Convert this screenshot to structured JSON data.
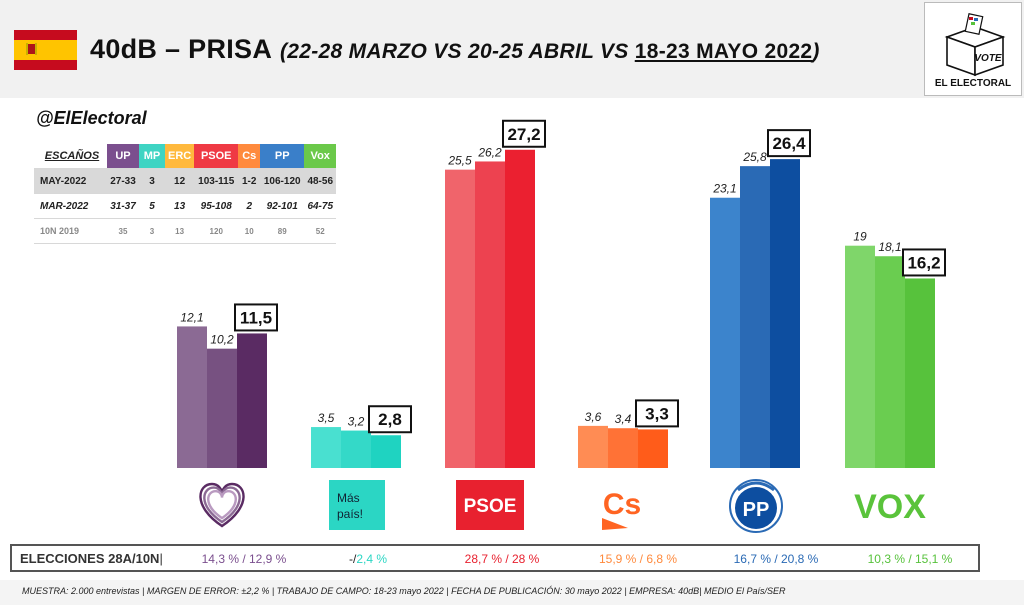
{
  "header": {
    "title_main": "40dB – PRISA",
    "title_paren_open": "(",
    "title_dates_a": "22-28 MARZO VS 20-25 ABRIL VS ",
    "title_dates_b": "18-23 MAYO 2022",
    "title_paren_close": ")",
    "flag": {
      "country": "Spain",
      "colors": [
        "#c60b1e",
        "#ffc400"
      ]
    },
    "logo": {
      "icon": "ballot-box-icon",
      "ballot_text": "VOTE",
      "text": "EL ELECTORAL"
    }
  },
  "handle": "@ElElectoral",
  "seats_table": {
    "corner_label": "ESCAÑOS",
    "parties": [
      {
        "label": "UP",
        "color": "#7b4f8e"
      },
      {
        "label": "MP",
        "color": "#3ed4c3"
      },
      {
        "label": "ERC",
        "color": "#ffb93d"
      },
      {
        "label": "PSOE",
        "color": "#ef3a44"
      },
      {
        "label": "Cs",
        "color": "#ff8a3d"
      },
      {
        "label": "PP",
        "color": "#3a7fc9"
      },
      {
        "label": "Vox",
        "color": "#6bc94a"
      }
    ],
    "rows": [
      {
        "label": "MAY-2022",
        "values": [
          "27-33",
          "3",
          "12",
          "103-115",
          "1-2",
          "106-120",
          "48-56"
        ]
      },
      {
        "label": "MAR-2022",
        "values": [
          "31-37",
          "5",
          "13",
          "95-108",
          "2",
          "92-101",
          "64-75"
        ]
      },
      {
        "label": "10N 2019",
        "values": [
          "35",
          "3",
          "13",
          "120",
          "10",
          "89",
          "52"
        ]
      }
    ]
  },
  "chart_data": {
    "type": "bar",
    "title": "",
    "xlabel": "",
    "ylabel": "",
    "ylim": [
      0,
      30
    ],
    "grid": false,
    "legend": "none",
    "categories": [
      "UP",
      "Más País",
      "PSOE",
      "Cs",
      "PP",
      "VOX"
    ],
    "periods": [
      "22-28 marzo",
      "20-25 abril",
      "18-23 mayo 2022"
    ],
    "groups": [
      {
        "name": "UP",
        "values": [
          12.1,
          10.2,
          11.5
        ],
        "labels": [
          "12,1",
          "10,2",
          "11,5"
        ],
        "colors": [
          "#8b6a94",
          "#775181",
          "#5a2b63"
        ]
      },
      {
        "name": "Más País",
        "values": [
          3.5,
          3.2,
          2.8
        ],
        "labels": [
          "3,5",
          "3,2",
          "2,8"
        ],
        "colors": [
          "#49e0d0",
          "#34d9c8",
          "#1fd3c1"
        ]
      },
      {
        "name": "PSOE",
        "values": [
          25.5,
          26.2,
          27.2
        ],
        "labels": [
          "25,5",
          "26,2",
          "27,2"
        ],
        "colors": [
          "#f0646b",
          "#ed4250",
          "#eb2030"
        ]
      },
      {
        "name": "Cs",
        "values": [
          3.6,
          3.4,
          3.3
        ],
        "labels": [
          "3,6",
          "3,4",
          "3,3"
        ],
        "colors": [
          "#ff8c54",
          "#ff7236",
          "#ff5c1a"
        ]
      },
      {
        "name": "PP",
        "values": [
          23.1,
          25.8,
          26.4
        ],
        "labels": [
          "23,1",
          "25,8",
          "26,4"
        ],
        "colors": [
          "#3c84cc",
          "#2a6ab5",
          "#0d4ea0"
        ]
      },
      {
        "name": "VOX",
        "values": [
          19,
          18.1,
          16.2
        ],
        "labels": [
          "19",
          "18,1",
          "16,2"
        ],
        "colors": [
          "#7fd66a",
          "#6acd50",
          "#57c23c"
        ]
      }
    ],
    "party_logos": [
      {
        "name": "up-logo",
        "icon": "heart-icon",
        "text": ""
      },
      {
        "name": "mas-pais-logo",
        "icon": "mas-pais-icon",
        "text_1": "Más",
        "text_2": "país!",
        "bg": "#2bd6c4"
      },
      {
        "name": "psoe-logo",
        "icon": "psoe-icon",
        "text": "PSOE",
        "bg": "#e8212f"
      },
      {
        "name": "cs-logo",
        "icon": "cs-icon",
        "text": "Cs",
        "color": "#ff6422"
      },
      {
        "name": "pp-logo",
        "icon": "pp-icon",
        "text": "PP",
        "color": "#0d4ea0"
      },
      {
        "name": "vox-logo",
        "icon": "vox-icon",
        "text": "VOX",
        "color": "#5ac33b"
      }
    ]
  },
  "results": {
    "label": "ELECCIONES 28A/10N",
    "separator": "|",
    "items": [
      {
        "text": "14,3 % / 12,9 %",
        "color": "#7b4f8e"
      },
      {
        "text_a": "-/",
        "text_b": "2,4 %",
        "color_a": "#222222",
        "color": "#2bd6c4"
      },
      {
        "text": "28,7  % / 28 %",
        "color": "#e8212f"
      },
      {
        "text": "15,9 % / 6,8 %",
        "color": "#ff8a3d"
      },
      {
        "text": "16,7 % / 20,8 %",
        "color": "#2a6ab5"
      },
      {
        "text": "10,3 % / 15,1 %",
        "color": "#57c23c"
      }
    ]
  },
  "footer": "MUESTRA: 2.000 entrevistas | MARGEN DE ERROR: ±2,2 % | TRABAJO DE CAMPO: 18-23 mayo 2022 | FECHA DE PUBLICACIÓN: 30 mayo 2022 | EMPRESA: 40dB| MEDIO El País/SER"
}
